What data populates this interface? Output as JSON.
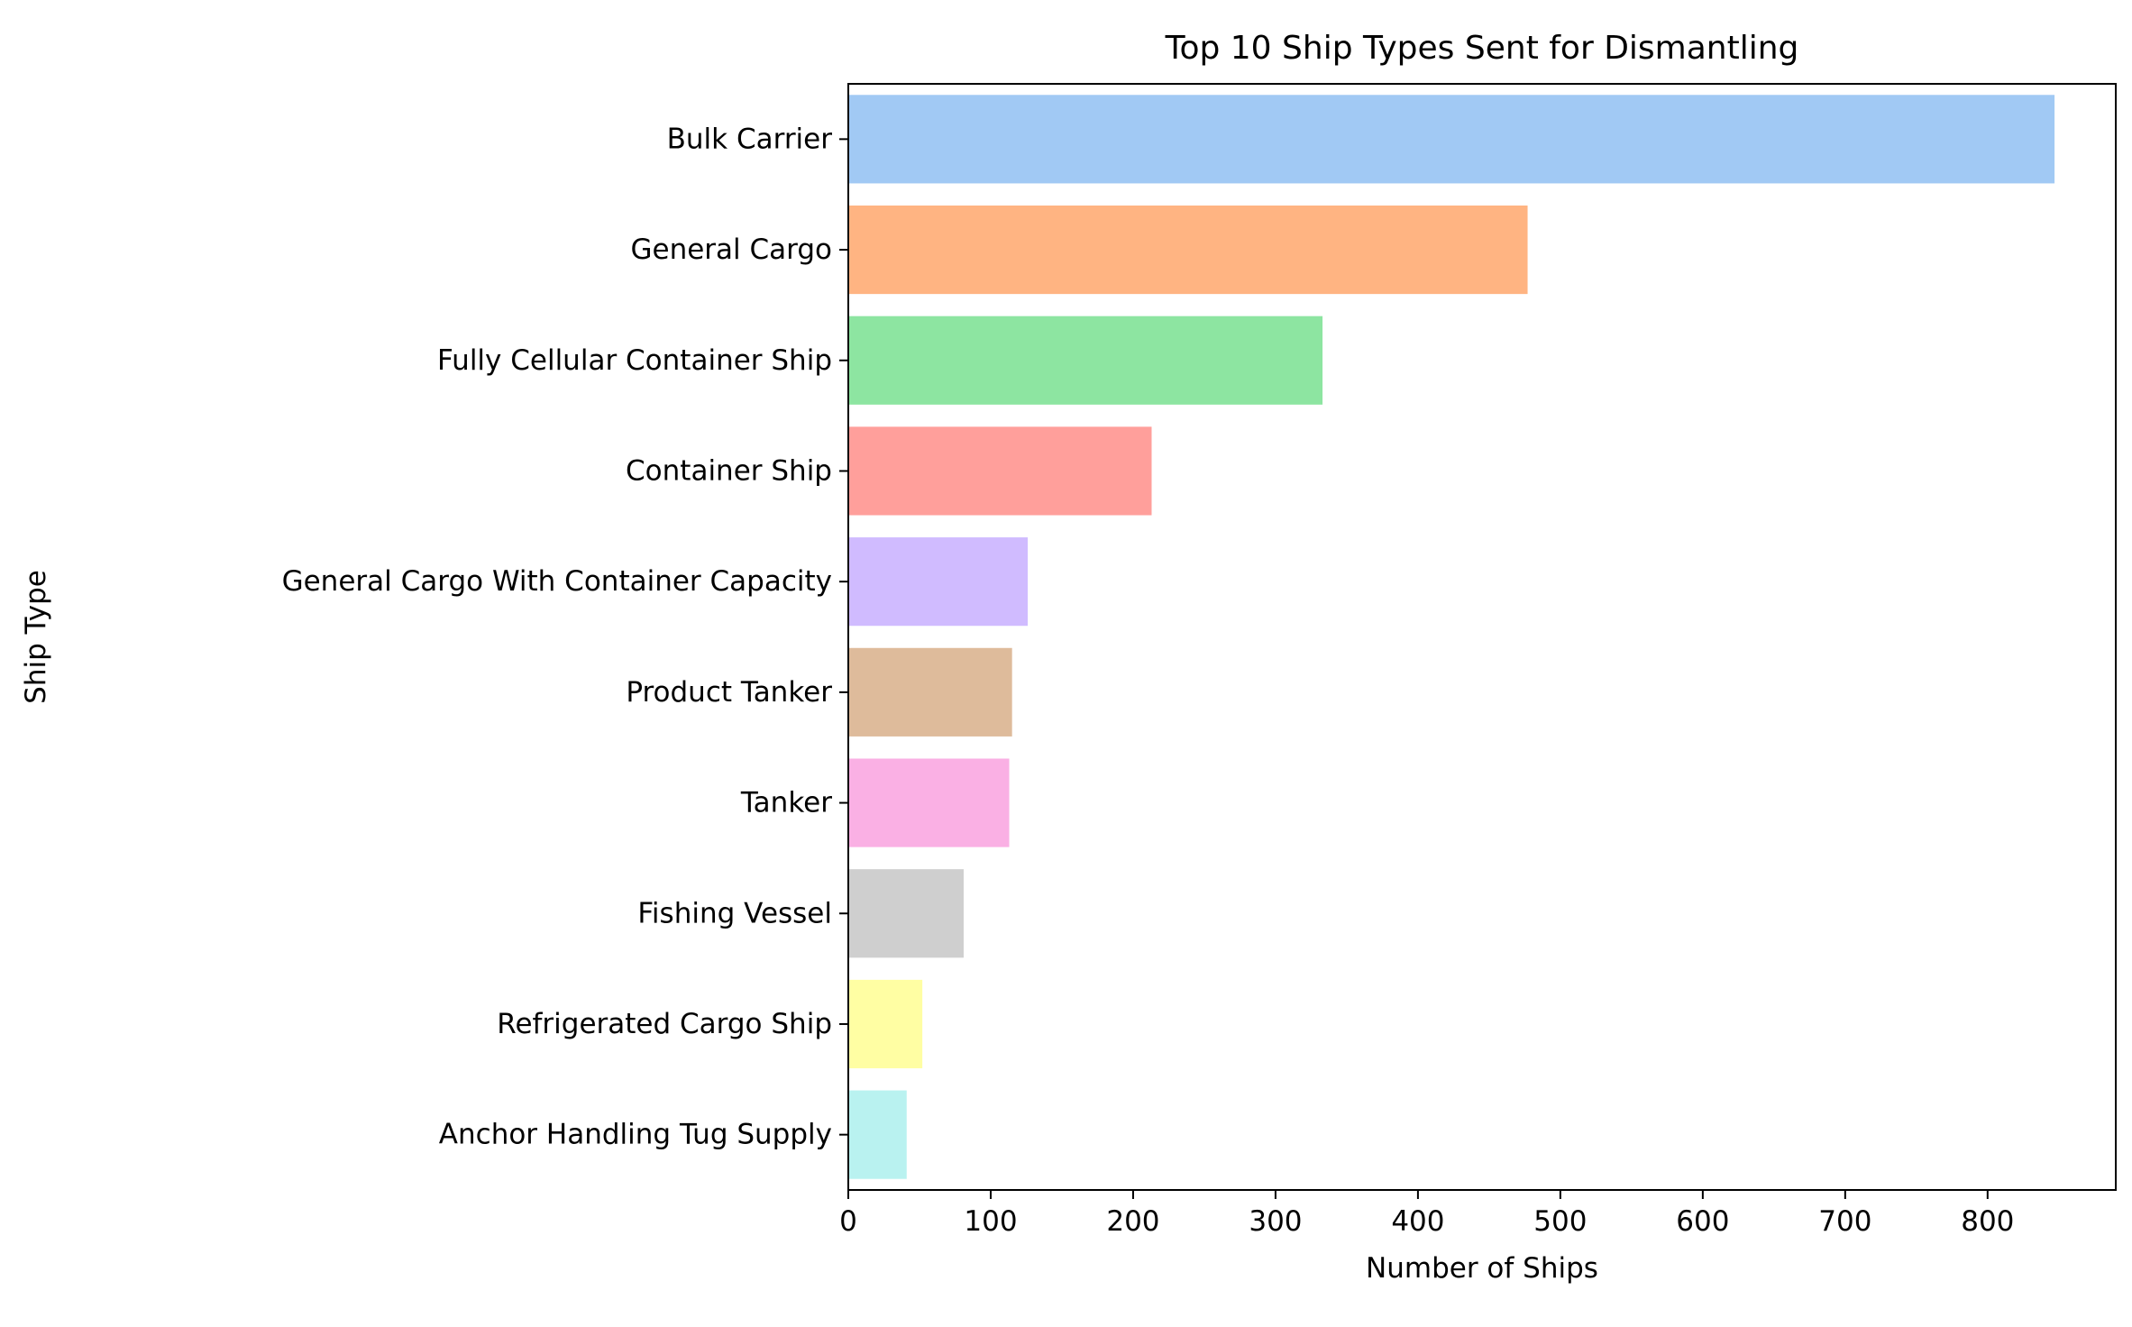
{
  "chart_data": {
    "type": "bar",
    "orientation": "horizontal",
    "title": "Top 10 Ship Types Sent for Dismantling",
    "xlabel": "Number of Ships",
    "ylabel": "Ship Type",
    "xlim": [
      0,
      890
    ],
    "xticks": [
      0,
      100,
      200,
      300,
      400,
      500,
      600,
      700,
      800
    ],
    "grid": false,
    "legend": "none",
    "categories": [
      "Bulk Carrier",
      "General Cargo",
      "Fully Cellular Container Ship",
      "Container Ship",
      "General Cargo With Container Capacity",
      "Product Tanker",
      "Tanker",
      "Fishing Vessel",
      "Refrigerated Cargo Ship",
      "Anchor Handling Tug Supply"
    ],
    "values": [
      847,
      477,
      333,
      213,
      126,
      115,
      113,
      81,
      52,
      41
    ],
    "colors": [
      "#a1c9f4",
      "#ffb482",
      "#8de5a1",
      "#ff9f9b",
      "#d0bbff",
      "#debb9b",
      "#fab0e4",
      "#cfcfcf",
      "#fffea3",
      "#b9f2f0"
    ]
  }
}
